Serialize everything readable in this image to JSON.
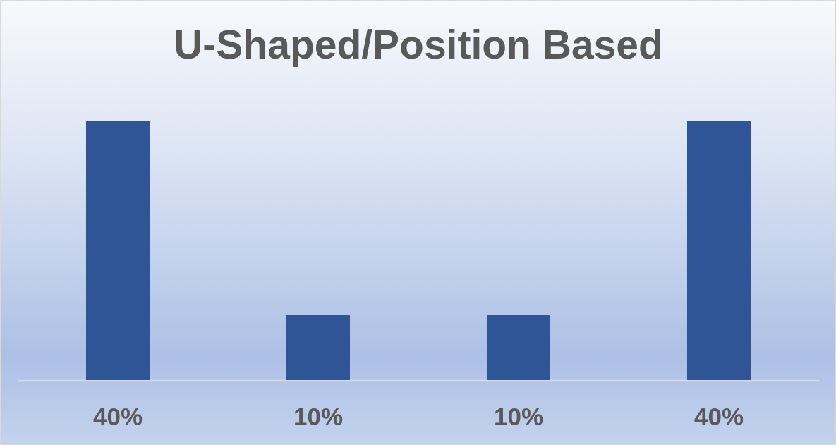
{
  "chart_data": {
    "type": "bar",
    "title": "U-Shaped/Position Based",
    "categories": [
      null,
      null,
      null,
      null
    ],
    "values": [
      40,
      10,
      10,
      40
    ],
    "value_labels": [
      "40%",
      "10%",
      "10%",
      "40%"
    ],
    "color": "#2f5597"
  }
}
